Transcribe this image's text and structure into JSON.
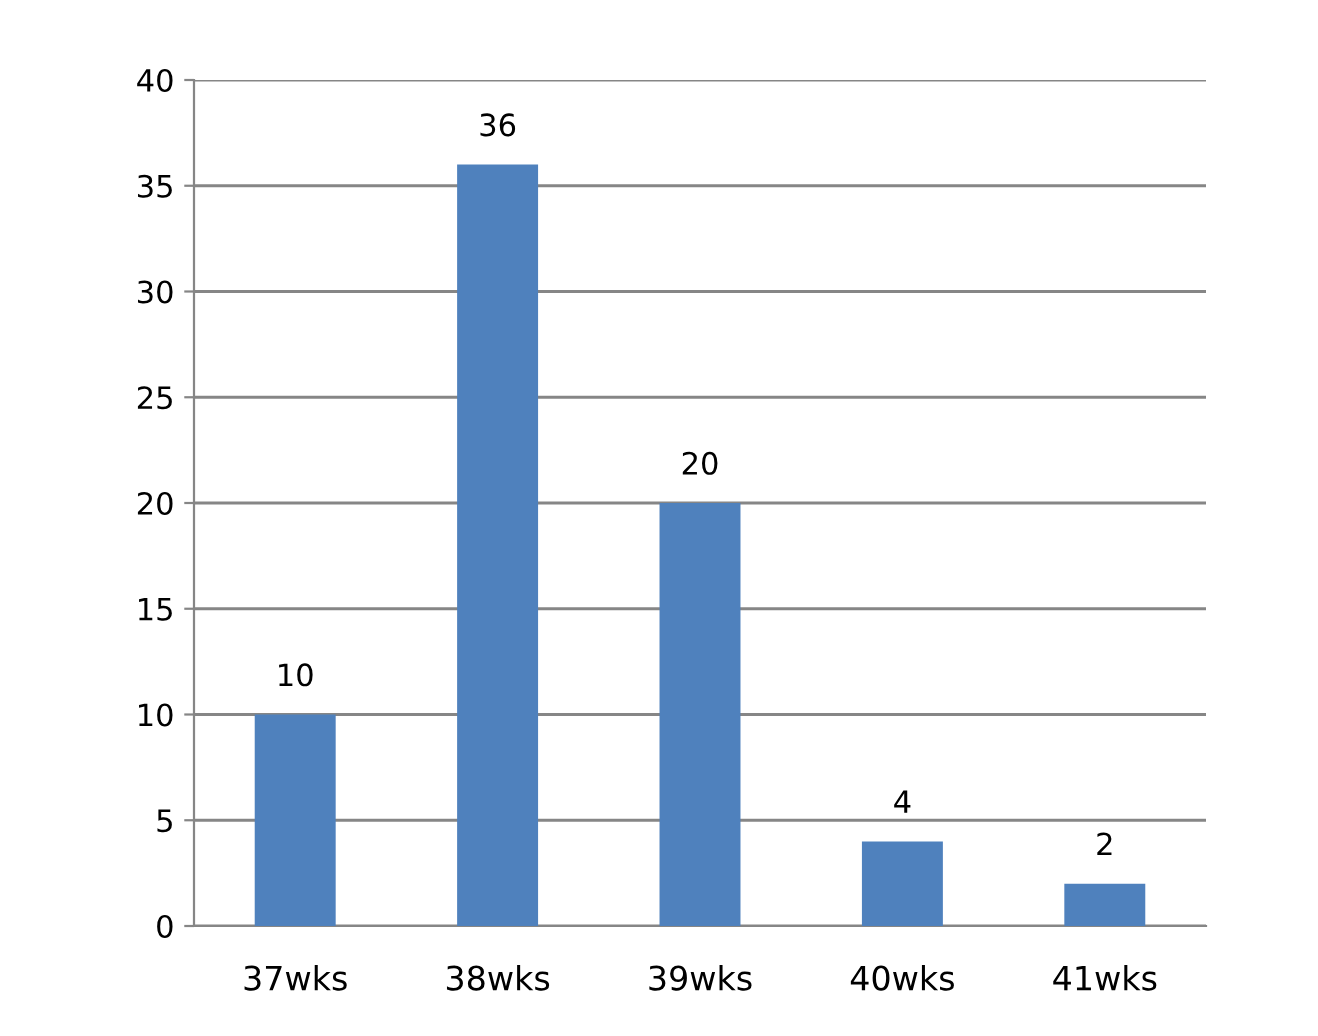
{
  "chart_data": {
    "type": "bar",
    "categories": [
      "37wks",
      "38wks",
      "39wks",
      "40wks",
      "41wks"
    ],
    "values": [
      10,
      36,
      20,
      4,
      2
    ],
    "color": "#4f81bd",
    "ylim": [
      0,
      40
    ],
    "yticks": [
      0,
      5,
      10,
      15,
      20,
      25,
      30,
      35,
      40
    ],
    "grid": "y",
    "data_labels": true
  }
}
